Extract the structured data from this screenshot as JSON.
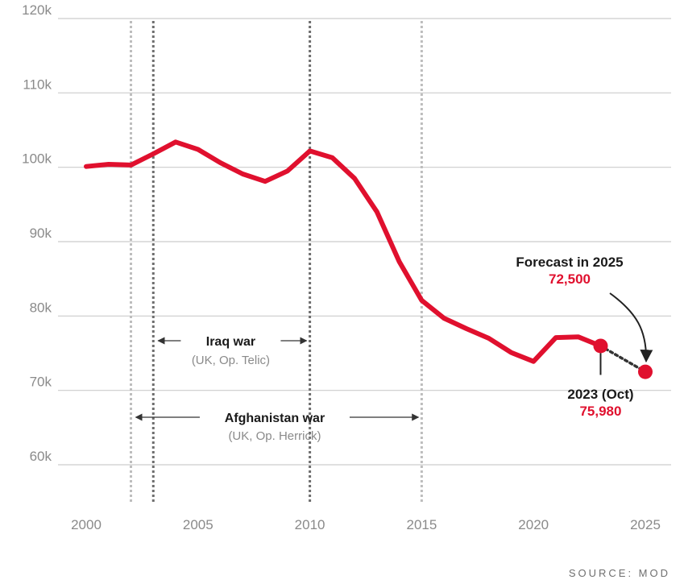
{
  "chart_data": {
    "type": "line",
    "y_tick_labels": [
      "120k",
      "110k",
      "100k",
      "90k",
      "80k",
      "70k",
      "60k"
    ],
    "y_ticks": [
      120000,
      110000,
      100000,
      90000,
      80000,
      70000,
      60000
    ],
    "x_tick_labels": [
      "2000",
      "2005",
      "2010",
      "2015",
      "2020",
      "2025"
    ],
    "x_ticks": [
      2000,
      2005,
      2010,
      2015,
      2020,
      2025
    ],
    "xlim": [
      2000,
      2025
    ],
    "ylim": [
      55000,
      120000
    ],
    "grid": "horizontal",
    "series": [
      {
        "color": "#e0102e",
        "x": [
          2000,
          2001,
          2002,
          2003,
          2004,
          2005,
          2006,
          2007,
          2008,
          2009,
          2010,
          2011,
          2012,
          2013,
          2014,
          2015,
          2016,
          2017,
          2018,
          2019,
          2020,
          2021,
          2022,
          2023
        ],
        "y": [
          100100,
          100400,
          100300,
          101800,
          103400,
          102400,
          100600,
          99100,
          98100,
          99500,
          102200,
          101300,
          98500,
          94000,
          87300,
          82100,
          79700,
          78300,
          77000,
          75100,
          73900,
          77100,
          77200,
          75980
        ]
      }
    ],
    "forecast": {
      "x": [
        2023,
        2025
      ],
      "y": [
        75980,
        72500
      ],
      "color": "#e0102e",
      "style": "dotted"
    },
    "periods": [
      {
        "title": "Iraq war",
        "subtitle": "(UK, Op. Telic)",
        "start": 2003,
        "end": 2010,
        "line_color": "#6e6e6e"
      },
      {
        "title": "Afghanistan war",
        "subtitle": "(UK, Op. Herrick)",
        "start": 2002,
        "end": 2015,
        "line_color": "#bdbdbd"
      }
    ],
    "callouts": {
      "forecast": {
        "label": "Forecast in 2025",
        "value": "72,500",
        "x": 2025,
        "y": 72500
      },
      "current": {
        "label": "2023 (Oct)",
        "value": "75,980",
        "x": 2023,
        "y": 75980
      }
    },
    "source": "SOURCE: MOD"
  },
  "colors": {
    "accent": "#e0102e",
    "grid": "#cccccc",
    "axis_text": "#8a8a8a"
  }
}
